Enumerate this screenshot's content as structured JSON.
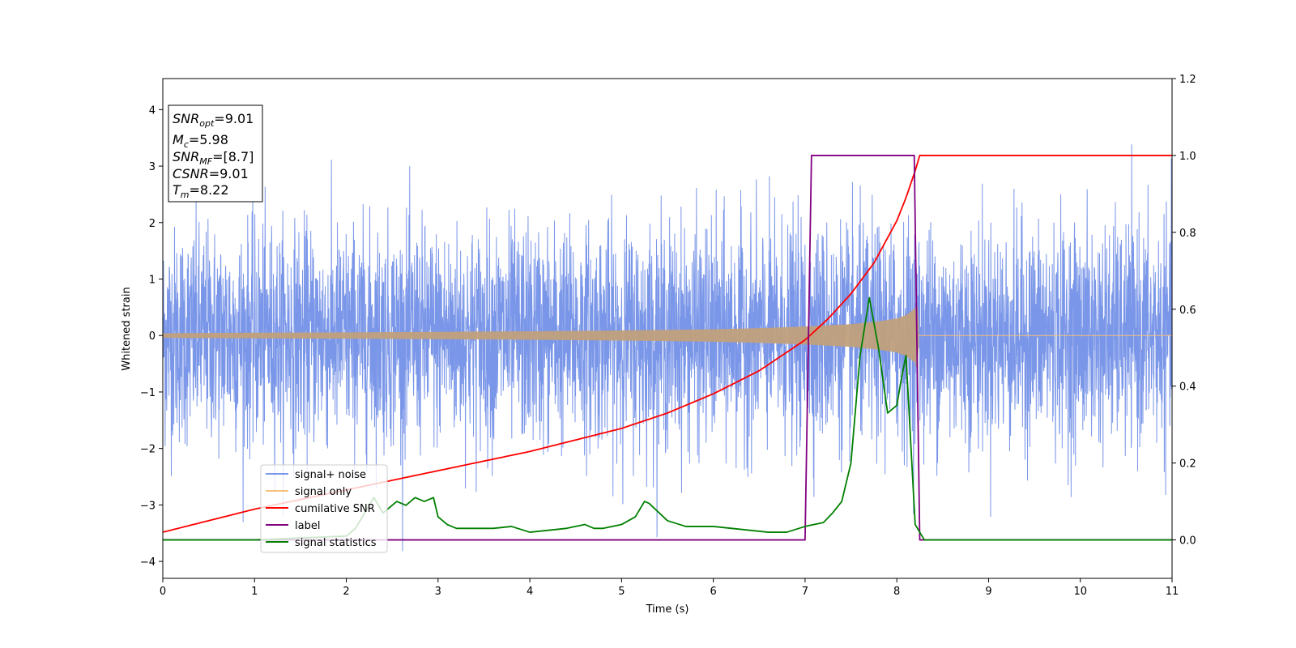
{
  "chart_data": {
    "type": "line",
    "xlabel": "Time (s)",
    "ylabel": "Whitened strain",
    "xlim": [
      0,
      11
    ],
    "ylim": [
      -4.3,
      4.55
    ],
    "y2lim": [
      -0.1,
      1.2
    ],
    "x_ticks": [
      "0",
      "1",
      "2",
      "3",
      "4",
      "5",
      "6",
      "7",
      "8",
      "9",
      "10",
      "11"
    ],
    "y_ticks": [
      "−4",
      "−3",
      "−2",
      "−1",
      "0",
      "1",
      "2",
      "3",
      "4"
    ],
    "y2_ticks": [
      "0.0",
      "0.2",
      "0.4",
      "0.6",
      "0.8",
      "1.0",
      "1.2"
    ],
    "info_box": {
      "snr_opt": {
        "base": "SNR",
        "sub": "opt",
        "value": "=9.01"
      },
      "mc": {
        "base": "M",
        "sub": "c",
        "value": "=5.98"
      },
      "snr_mf": {
        "base": "SNR",
        "sub": "MF",
        "value": "=[8.7]"
      },
      "csnr": {
        "base": "CSNR",
        "value": "=9.01"
      },
      "tm": {
        "base": "T",
        "sub": "m",
        "value": "=8.22"
      }
    },
    "legend": {
      "placement": "lower-left",
      "entries": [
        "signal+ noise",
        "signal only",
        "cumilative SNR",
        "label",
        "signal statistics"
      ]
    },
    "colors": {
      "signal_noise": "#7a96e8",
      "signal_only": "#f5c07a",
      "signal_overlap": "#c1a07c",
      "cumulative_snr": "#ff0000",
      "label": "#800080",
      "signal_statistics": "#008000"
    },
    "series": [
      {
        "name": "signal+ noise",
        "axis": "left",
        "description_values": {
          "t_start": 0,
          "t_end": 11,
          "std": 0.95,
          "typical_max": 3.6,
          "typical_min": -3.8
        }
      },
      {
        "name": "signal only",
        "axis": "left",
        "envelope": {
          "x": [
            0,
            1,
            2,
            3,
            4,
            5,
            6,
            6.5,
            7,
            7.5,
            7.8,
            8.0,
            8.1,
            8.2,
            8.22,
            8.25,
            11
          ],
          "amp": [
            0.04,
            0.05,
            0.055,
            0.065,
            0.075,
            0.09,
            0.11,
            0.13,
            0.16,
            0.2,
            0.25,
            0.3,
            0.36,
            0.48,
            0.62,
            0.0,
            0.0
          ]
        }
      },
      {
        "name": "cumilative SNR",
        "axis": "right",
        "x": [
          0,
          0.5,
          1,
          1.5,
          2,
          2.5,
          3,
          3.5,
          4,
          4.5,
          5,
          5.5,
          6,
          6.5,
          7,
          7.25,
          7.5,
          7.75,
          8.0,
          8.1,
          8.2,
          8.25,
          11
        ],
        "y": [
          0.02,
          0.05,
          0.08,
          0.105,
          0.13,
          0.155,
          0.18,
          0.205,
          0.23,
          0.26,
          0.29,
          0.33,
          0.38,
          0.44,
          0.52,
          0.575,
          0.64,
          0.72,
          0.83,
          0.89,
          0.96,
          1.0,
          1.0
        ]
      },
      {
        "name": "label",
        "axis": "right",
        "x": [
          0,
          7.0,
          7.07,
          8.19,
          8.25,
          11
        ],
        "y": [
          0.0,
          0.0,
          1.0,
          1.0,
          0.0,
          0.0
        ]
      },
      {
        "name": "signal statistics",
        "axis": "right",
        "x": [
          0,
          1,
          2,
          2.1,
          2.2,
          2.3,
          2.4,
          2.5,
          2.55,
          2.65,
          2.75,
          2.85,
          2.95,
          3.0,
          3.1,
          3.2,
          3.4,
          3.6,
          3.8,
          4.0,
          4.2,
          4.4,
          4.6,
          4.7,
          4.8,
          5.0,
          5.15,
          5.25,
          5.3,
          5.5,
          5.7,
          6.0,
          6.2,
          6.4,
          6.6,
          6.8,
          7.0,
          7.2,
          7.3,
          7.4,
          7.5,
          7.6,
          7.7,
          7.8,
          7.9,
          8.0,
          8.05,
          8.1,
          8.2,
          8.3,
          8.5,
          9,
          10,
          11
        ],
        "y": [
          0.0,
          0.0,
          0.01,
          0.03,
          0.07,
          0.11,
          0.07,
          0.09,
          0.1,
          0.09,
          0.11,
          0.1,
          0.11,
          0.06,
          0.04,
          0.03,
          0.03,
          0.03,
          0.035,
          0.02,
          0.025,
          0.03,
          0.04,
          0.03,
          0.03,
          0.04,
          0.06,
          0.1,
          0.095,
          0.05,
          0.035,
          0.035,
          0.03,
          0.025,
          0.02,
          0.02,
          0.035,
          0.045,
          0.07,
          0.1,
          0.2,
          0.48,
          0.63,
          0.5,
          0.33,
          0.35,
          0.42,
          0.48,
          0.04,
          0.0,
          0.0,
          0.0,
          0.0,
          0.0
        ]
      }
    ]
  }
}
